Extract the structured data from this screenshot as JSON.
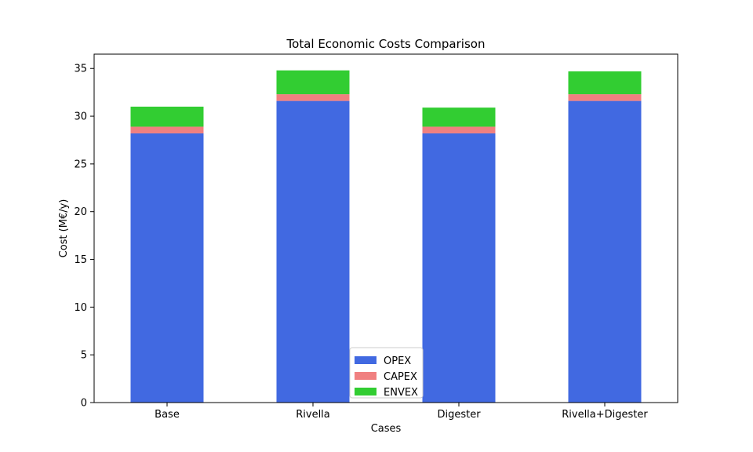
{
  "chart_data": {
    "type": "bar",
    "stacked": true,
    "title": "Total Economic Costs Comparison",
    "xlabel": "Cases",
    "ylabel": "Cost (M€/y)",
    "categories": [
      "Base",
      "Rivella",
      "Digester",
      "Rivella+Digester"
    ],
    "ylim": [
      0,
      36.5
    ],
    "yticks": [
      0,
      5,
      10,
      15,
      20,
      25,
      30,
      35
    ],
    "grid": false,
    "legend_position": "bottom-center",
    "series": [
      {
        "name": "OPEX",
        "color": "#4169e1",
        "values": [
          28.2,
          31.6,
          28.2,
          31.6
        ]
      },
      {
        "name": "CAPEX",
        "color": "#f08080",
        "values": [
          0.7,
          0.7,
          0.7,
          0.7
        ]
      },
      {
        "name": "ENVEX",
        "color": "#32cd32",
        "values": [
          2.1,
          2.5,
          2.0,
          2.4
        ]
      }
    ]
  }
}
